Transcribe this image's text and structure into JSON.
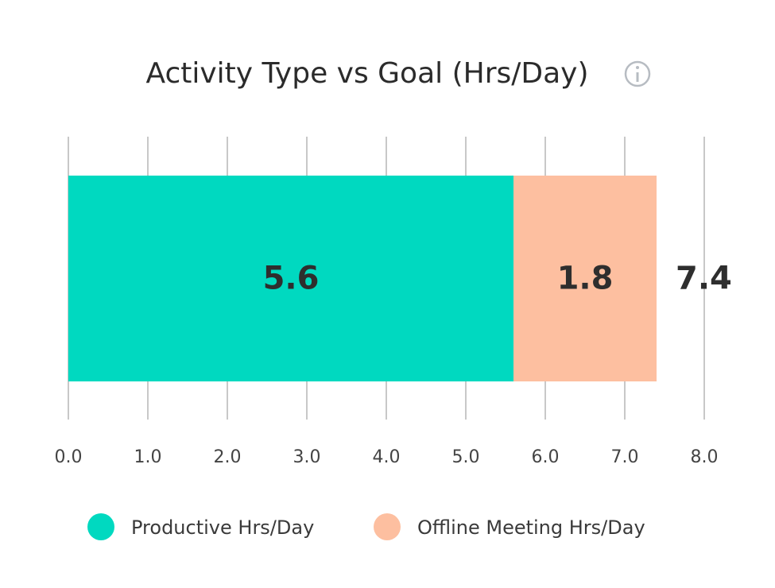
{
  "chart_data": {
    "type": "stacked-bar-horizontal",
    "title": "Activity Type vs Goal (Hrs/Day)",
    "series": [
      {
        "name": "Productive Hrs/Day",
        "color": "#00d9c0",
        "values": [
          5.6
        ]
      },
      {
        "name": "Offline Meeting Hrs/Day",
        "color": "#fdbfa0",
        "values": [
          1.8
        ]
      }
    ],
    "totals": [
      7.4
    ],
    "xlim": [
      0,
      8
    ],
    "xticks": [
      {
        "value": 0,
        "label": "0.0"
      },
      {
        "value": 1,
        "label": "1.0"
      },
      {
        "value": 2,
        "label": "2.0"
      },
      {
        "value": 3,
        "label": "3.0"
      },
      {
        "value": 4,
        "label": "4.0"
      },
      {
        "value": 5,
        "label": "5.0"
      },
      {
        "value": 6,
        "label": "6.0"
      },
      {
        "value": 7,
        "label": "7.0"
      },
      {
        "value": 8,
        "label": "8.0"
      }
    ],
    "grid": true,
    "legend": "bottom"
  }
}
